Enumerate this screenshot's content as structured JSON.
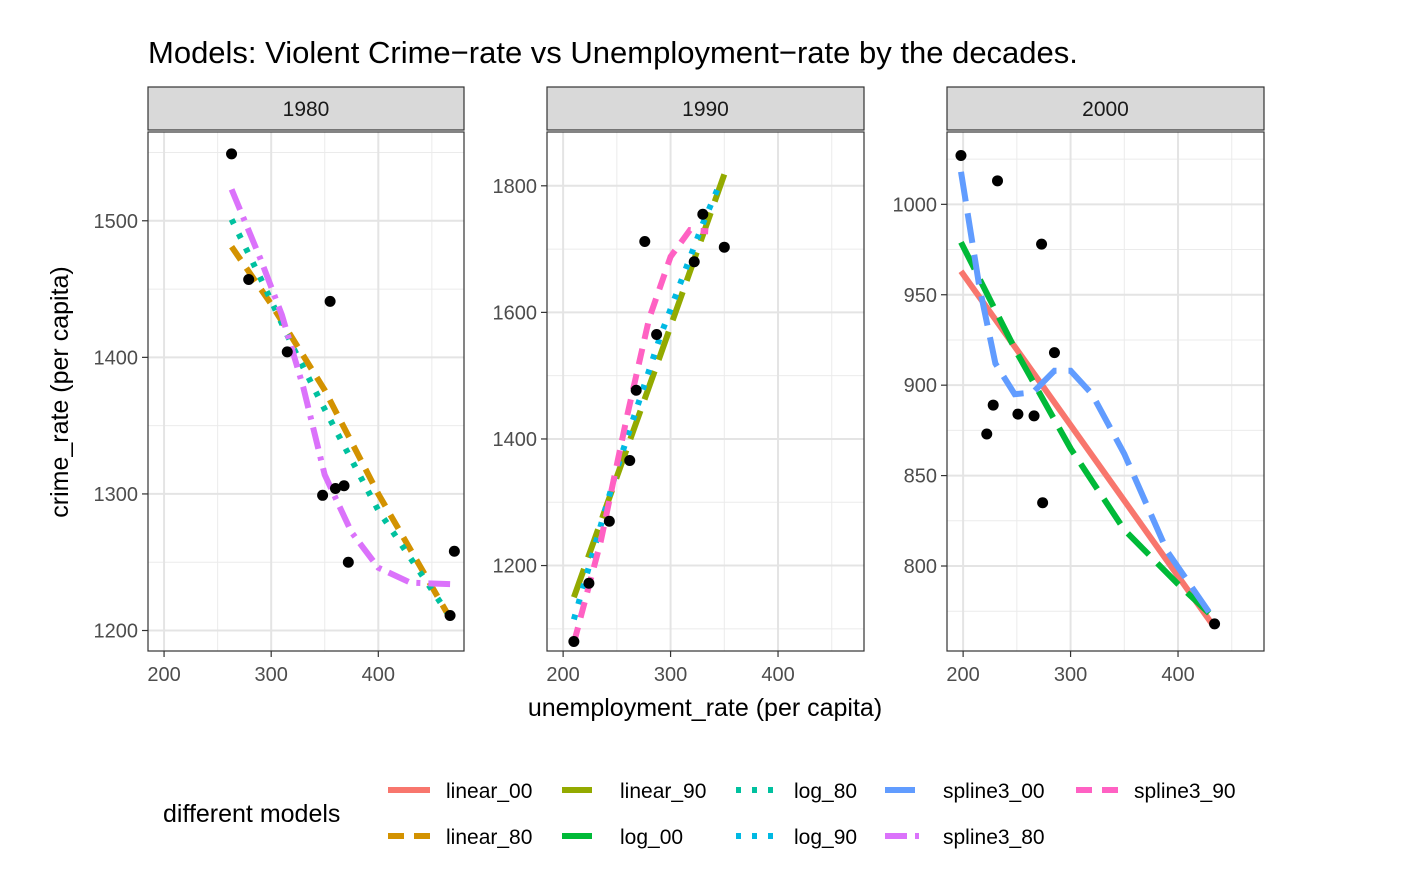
{
  "chart_data": {
    "type": "scatter",
    "title": "Models: Violent Crime−rate vs Unemployment−rate by the decades.",
    "xlabel": "unemployment_rate (per capita)",
    "ylabel": "crime_rate (per capita)",
    "legend": {
      "title": "different models",
      "placement": "bottom",
      "entries": [
        {
          "name": "linear_00",
          "color": "#F8766D",
          "dash": "solid"
        },
        {
          "name": "linear_80",
          "color": "#D39200",
          "dash": "dash"
        },
        {
          "name": "linear_90",
          "color": "#93AA00",
          "dash": "longdash"
        },
        {
          "name": "log_00",
          "color": "#00BA38",
          "dash": "longdash"
        },
        {
          "name": "log_80",
          "color": "#00C19F",
          "dash": "dotted"
        },
        {
          "name": "log_90",
          "color": "#00B9E3",
          "dash": "dotted"
        },
        {
          "name": "spline3_00",
          "color": "#619CFF",
          "dash": "longdash"
        },
        {
          "name": "spline3_80",
          "color": "#DB72FB",
          "dash": "dashdot"
        },
        {
          "name": "spline3_90",
          "color": "#FF61C3",
          "dash": "dash"
        }
      ]
    },
    "grid": true,
    "xlim": [
      185,
      480
    ],
    "x_ticks": [
      200,
      300,
      400
    ],
    "panels": [
      {
        "label": "1980",
        "ylim": [
          1185,
          1565
        ],
        "y_ticks": [
          1200,
          1300,
          1400,
          1500
        ],
        "points": [
          [
            263,
            1549
          ],
          [
            279,
            1457
          ],
          [
            315,
            1404
          ],
          [
            348,
            1299
          ],
          [
            355,
            1441
          ],
          [
            360,
            1304
          ],
          [
            368,
            1306
          ],
          [
            372,
            1250
          ],
          [
            467,
            1211
          ],
          [
            471,
            1258
          ]
        ],
        "models": [
          {
            "name": "linear_80",
            "points": [
              [
                263,
                1481
              ],
              [
                300,
                1439
              ],
              [
                350,
                1376
              ],
              [
                400,
                1300
              ],
              [
                467,
                1209
              ]
            ]
          },
          {
            "name": "log_80",
            "points": [
              [
                263,
                1501
              ],
              [
                290,
                1458
              ],
              [
                320,
                1408
              ],
              [
                350,
                1362
              ],
              [
                400,
                1288
              ],
              [
                467,
                1210
              ]
            ]
          },
          {
            "name": "spline3_80",
            "points": [
              [
                263,
                1523
              ],
              [
                290,
                1472
              ],
              [
                310,
                1431
              ],
              [
                330,
                1378
              ],
              [
                350,
                1314
              ],
              [
                375,
                1272
              ],
              [
                400,
                1246
              ],
              [
                430,
                1235
              ],
              [
                467,
                1234
              ]
            ]
          }
        ]
      },
      {
        "label": "1990",
        "ylim": [
          1065,
          1885
        ],
        "y_ticks": [
          1200,
          1400,
          1600,
          1800
        ],
        "points": [
          [
            210,
            1080
          ],
          [
            224,
            1172
          ],
          [
            243,
            1270
          ],
          [
            262,
            1366
          ],
          [
            268,
            1477
          ],
          [
            276,
            1712
          ],
          [
            287,
            1565
          ],
          [
            322,
            1680
          ],
          [
            330,
            1755
          ],
          [
            350,
            1703
          ]
        ],
        "models": [
          {
            "name": "linear_90",
            "points": [
              [
                210,
                1150
              ],
              [
                250,
                1340
              ],
              [
                290,
                1530
              ],
              [
                330,
                1722
              ],
              [
                350,
                1818
              ]
            ]
          },
          {
            "name": "log_90",
            "points": [
              [
                210,
                1115
              ],
              [
                250,
                1352
              ],
              [
                290,
                1560
              ],
              [
                330,
                1740
              ],
              [
                345,
                1800
              ]
            ]
          },
          {
            "name": "spline3_90",
            "points": [
              [
                210,
                1078
              ],
              [
                235,
                1238
              ],
              [
                260,
                1440
              ],
              [
                280,
                1590
              ],
              [
                300,
                1688
              ],
              [
                318,
                1730
              ],
              [
                335,
                1728
              ]
            ]
          }
        ]
      },
      {
        "label": "2000",
        "ylim": [
          753,
          1040
        ],
        "y_ticks": [
          800,
          850,
          900,
          950,
          1000
        ],
        "points": [
          [
            198,
            1027
          ],
          [
            222,
            873
          ],
          [
            228,
            889
          ],
          [
            232,
            1013
          ],
          [
            251,
            884
          ],
          [
            266,
            883
          ],
          [
            273,
            978
          ],
          [
            274,
            835
          ],
          [
            285,
            918
          ],
          [
            434,
            768
          ]
        ],
        "models": [
          {
            "name": "linear_00",
            "points": [
              [
                198,
                963
              ],
              [
                434,
                766
              ]
            ]
          },
          {
            "name": "log_00",
            "points": [
              [
                198,
                979
              ],
              [
                250,
                918
              ],
              [
                300,
                865
              ],
              [
                350,
                820
              ],
              [
                400,
                790
              ],
              [
                434,
                771
              ]
            ]
          },
          {
            "name": "spline3_00",
            "points": [
              [
                198,
                1018
              ],
              [
                215,
                955
              ],
              [
                230,
                912
              ],
              [
                248,
                895
              ],
              [
                265,
                896
              ],
              [
                285,
                908
              ],
              [
                300,
                908
              ],
              [
                320,
                895
              ],
              [
                350,
                862
              ],
              [
                390,
                808
              ],
              [
                434,
                770
              ]
            ]
          }
        ]
      }
    ]
  }
}
